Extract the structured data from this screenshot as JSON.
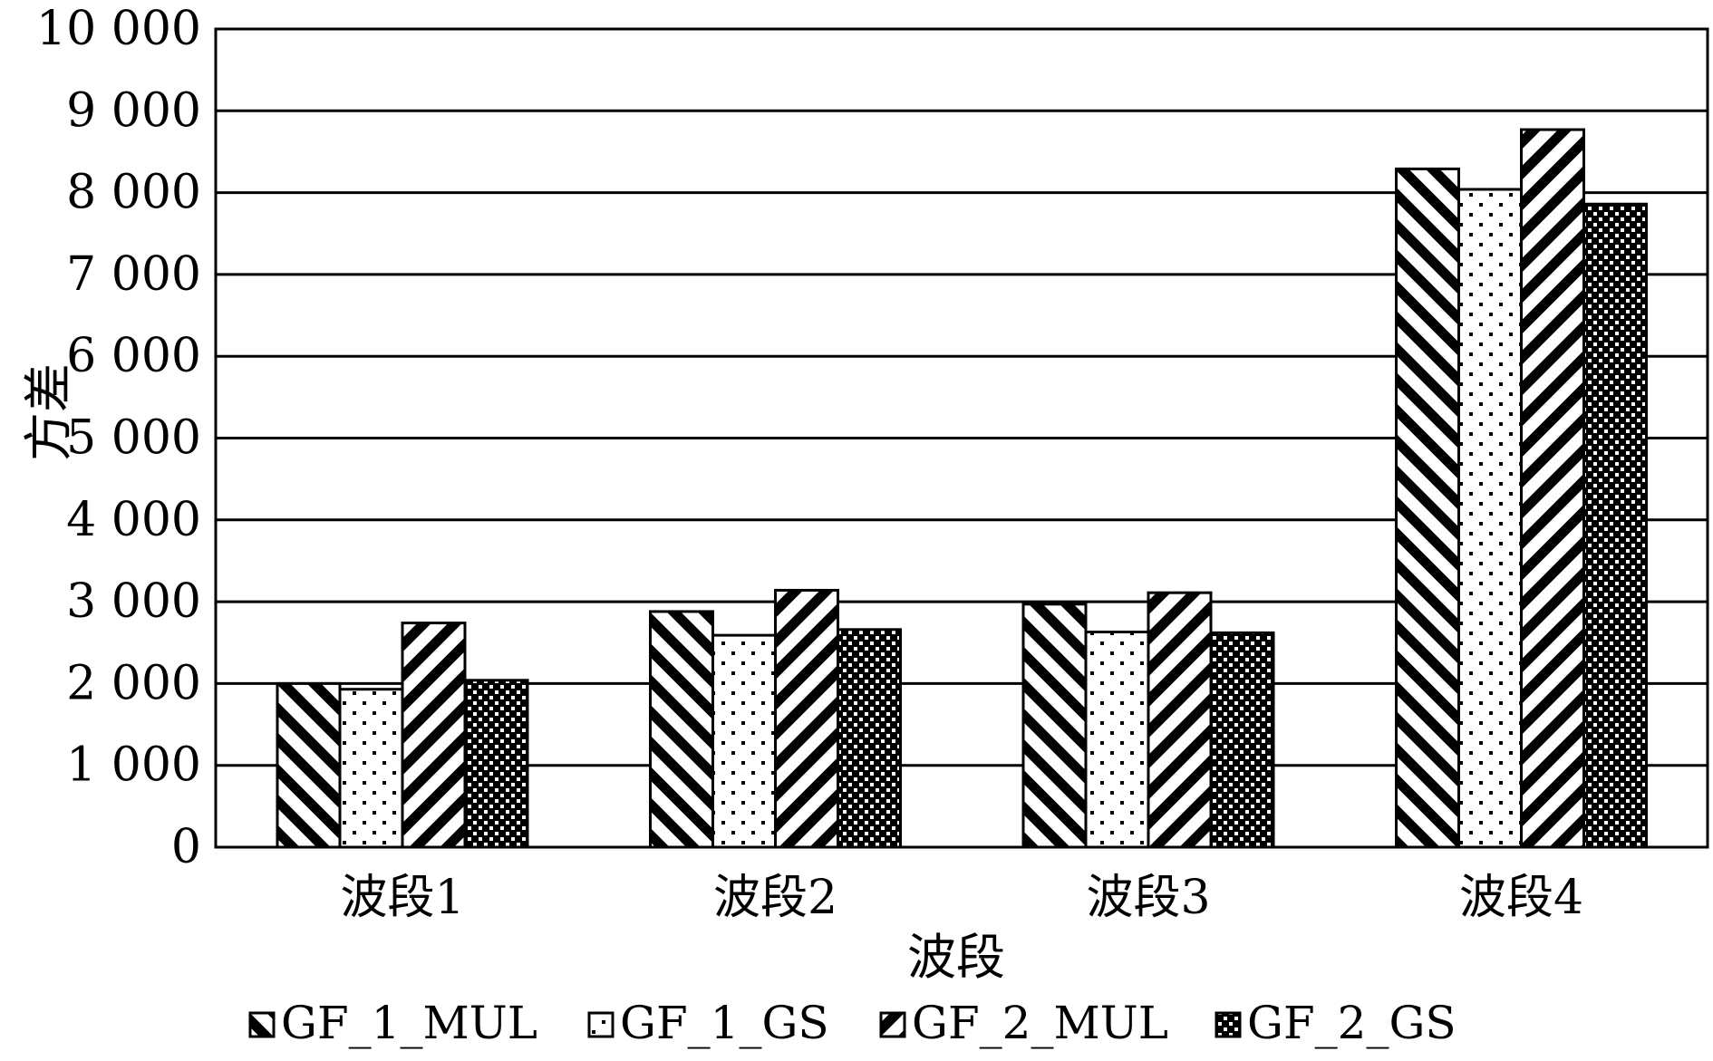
{
  "chart_data": {
    "type": "bar",
    "title": "",
    "xlabel": "波段",
    "ylabel": "方差",
    "ylim": [
      0,
      10000
    ],
    "yticks": [
      0,
      1000,
      2000,
      3000,
      4000,
      5000,
      6000,
      7000,
      8000,
      9000,
      10000
    ],
    "ytick_labels": [
      "0",
      "1 000",
      "2 000",
      "3 000",
      "4 000",
      "5 000",
      "6 000",
      "7 000",
      "8 000",
      "9 000",
      "10 000"
    ],
    "grid": true,
    "legend_position": "bottom",
    "categories": [
      "波段1",
      "波段2",
      "波段3",
      "波段4"
    ],
    "series": [
      {
        "name": "GF_1_MUL",
        "pattern": "diag-down",
        "values": [
          2000,
          2880,
          2970,
          8290
        ]
      },
      {
        "name": "GF_1_GS",
        "pattern": "dots",
        "values": [
          1930,
          2590,
          2630,
          8040
        ]
      },
      {
        "name": "GF_2_MUL",
        "pattern": "diag-up",
        "values": [
          2740,
          3140,
          3110,
          8770
        ]
      },
      {
        "name": "GF_2_GS",
        "pattern": "checker",
        "values": [
          2040,
          2660,
          2620,
          7860
        ]
      }
    ]
  }
}
